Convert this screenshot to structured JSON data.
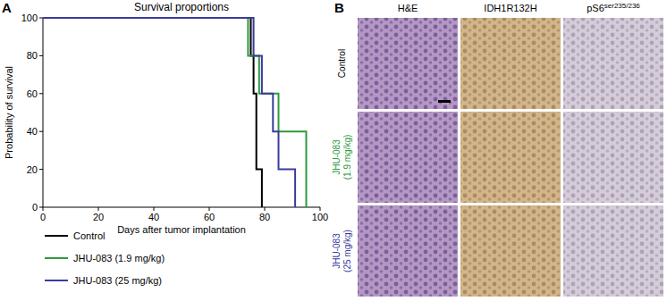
{
  "chart_data": {
    "type": "line",
    "line_style": "step",
    "title": "Survival proportions",
    "annotations": [
      "A"
    ],
    "x_label": "Days after tumor implantation",
    "y_label": "Probability of survival",
    "xlim": [
      0,
      100
    ],
    "xticks": [
      0,
      20,
      40,
      60,
      80,
      100
    ],
    "ylim": [
      0,
      100
    ],
    "yticks": [
      0,
      20,
      40,
      60,
      80,
      100
    ],
    "grid": false,
    "legend": "bottom",
    "series": [
      {
        "name": "Control",
        "color": "#000000",
        "x": [
          0,
          75,
          76,
          77,
          79
        ],
        "values": [
          100,
          80,
          60,
          20,
          0
        ]
      },
      {
        "name": "JHU-083 (1.9 mg/kg)",
        "color": "#2e9a3e",
        "x": [
          0,
          74,
          78,
          85,
          95
        ],
        "values": [
          100,
          80,
          60,
          40,
          0
        ]
      },
      {
        "name": "JHU-083 (25 mg/kg)",
        "color": "#3b3b9e",
        "x": [
          0,
          76,
          79,
          83,
          85,
          91
        ],
        "values": [
          100,
          80,
          60,
          40,
          20,
          0
        ]
      }
    ]
  },
  "panel_b": {
    "label": "B",
    "columns": [
      {
        "text": "H&E",
        "sup": ""
      },
      {
        "text": "IDH1R132H",
        "sup": ""
      },
      {
        "text": "pS6",
        "sup": "ser235/236"
      }
    ],
    "rows": [
      {
        "lines": [
          "Control"
        ],
        "color": "#000000"
      },
      {
        "lines": [
          "JHU-083",
          "(1.9 mg/kg)"
        ],
        "color": "#2e9a3e"
      },
      {
        "lines": [
          "JHU-083",
          "(25 mg/kg)"
        ],
        "color": "#3b3b9e"
      }
    ]
  }
}
